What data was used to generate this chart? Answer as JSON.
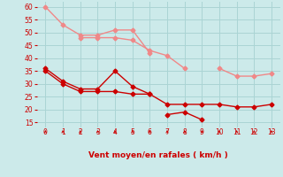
{
  "x": [
    0,
    1,
    2,
    3,
    4,
    5,
    6,
    7,
    8,
    9,
    10,
    11,
    12,
    13
  ],
  "line1_y": [
    60,
    53,
    49,
    49,
    51,
    51,
    42,
    null,
    null,
    null,
    null,
    null,
    null,
    null
  ],
  "line2_y": [
    null,
    null,
    48,
    48,
    48,
    47,
    43,
    41,
    36,
    null,
    36,
    33,
    33,
    34
  ],
  "line3_y": [
    36,
    31,
    28,
    28,
    35,
    29,
    26,
    null,
    null,
    null,
    null,
    null,
    null,
    null
  ],
  "line4_y": [
    35,
    30,
    27,
    27,
    27,
    26,
    26,
    22,
    22,
    22,
    22,
    21,
    21,
    22
  ],
  "line5_y": [
    null,
    null,
    null,
    null,
    null,
    null,
    null,
    18,
    19,
    16,
    null,
    null,
    null,
    null
  ],
  "bg_color": "#cceaea",
  "grid_color": "#aad4d4",
  "line_color_light": "#f08888",
  "line_color_dark": "#cc0000",
  "xlabel": "Vent moyen/en rafales ( km/h )",
  "xlabel_color": "#cc0000",
  "tick_color": "#cc0000",
  "arrow_color": "#cc0000",
  "ylim": [
    13,
    62
  ],
  "xlim": [
    -0.5,
    13.5
  ],
  "yticks": [
    15,
    20,
    25,
    30,
    35,
    40,
    45,
    50,
    55,
    60
  ],
  "xticks": [
    0,
    1,
    2,
    3,
    4,
    5,
    6,
    7,
    8,
    9,
    10,
    11,
    12,
    13
  ]
}
